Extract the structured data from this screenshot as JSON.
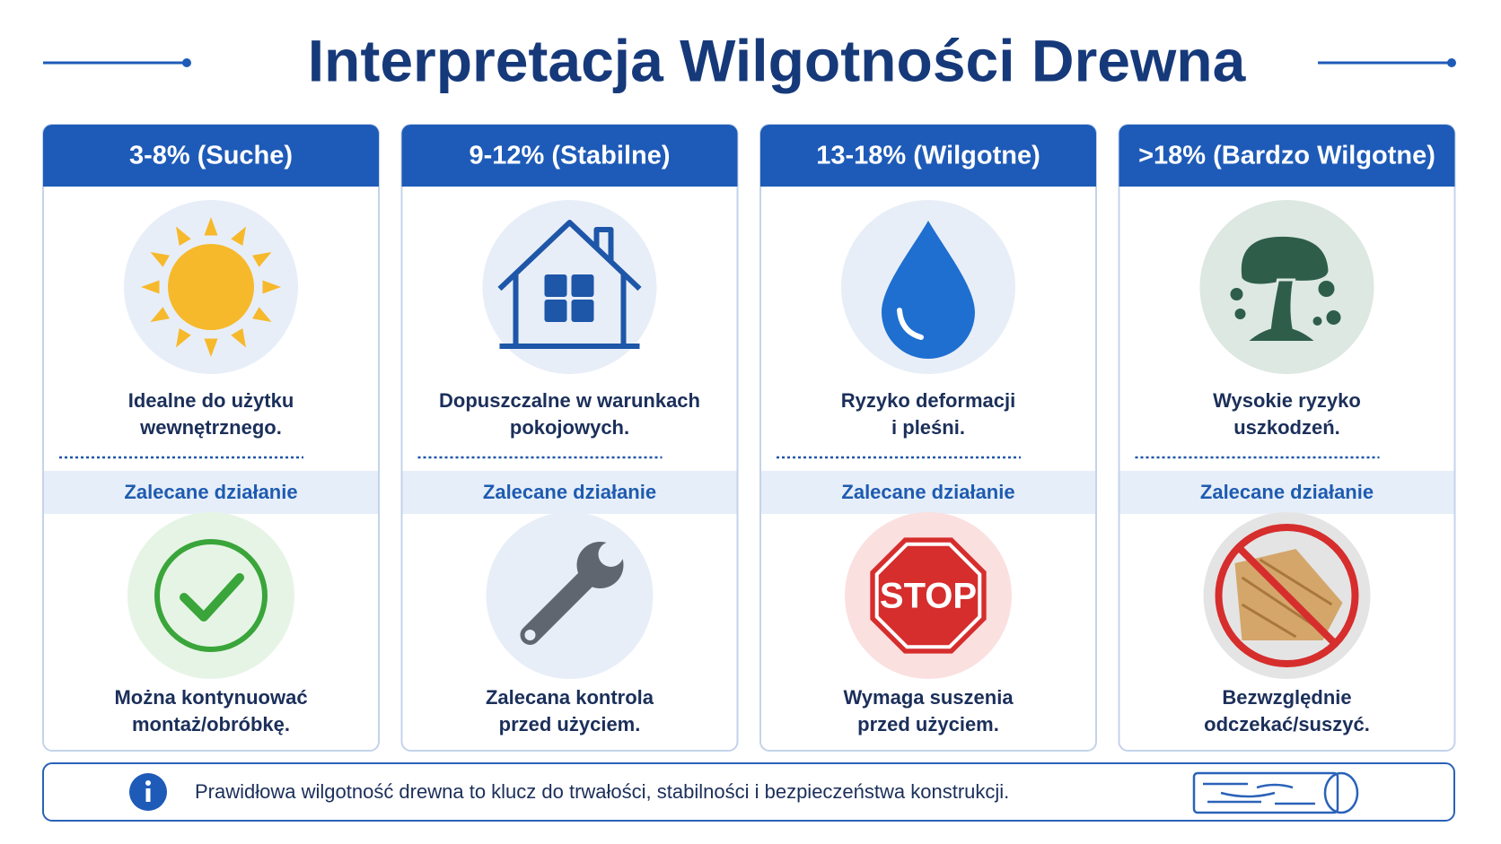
{
  "title": "Interpretacja Wilgotności Drewna",
  "cards": [
    {
      "header": "3-8% (Suche)",
      "description": [
        "Idealne do użytku",
        "wewnętrznego."
      ],
      "action_label": "Zalecane działanie",
      "action": [
        "Można kontynuować",
        "montaż/obróbkę."
      ]
    },
    {
      "header": "9-12% (Stabilne)",
      "description": [
        "Dopuszczalne w warunkach",
        "pokojowych."
      ],
      "action_label": "Zalecane działanie",
      "action": [
        "Zalecana kontrola",
        "przed użyciem."
      ]
    },
    {
      "header": "13-18% (Wilgotne)",
      "description": [
        "Ryzyko deformacji",
        "i pleśni."
      ],
      "action_label": "Zalecane działanie",
      "action": [
        "Wymaga suszenia",
        "przed użyciem."
      ],
      "icon_text": "STOP"
    },
    {
      "header": ">18% (Bardzo Wilgotne)",
      "description": [
        "Wysokie ryzyko",
        "uszkodzeń."
      ],
      "action_label": "Zalecane działanie",
      "action": [
        "Bezwzględnie",
        "odczekać/suszyć."
      ]
    }
  ],
  "footer": {
    "text": "Prawidłowa wilgotność drewna to klucz do trwałości, stabilności i bezpieczeństwa konstrukcji."
  }
}
